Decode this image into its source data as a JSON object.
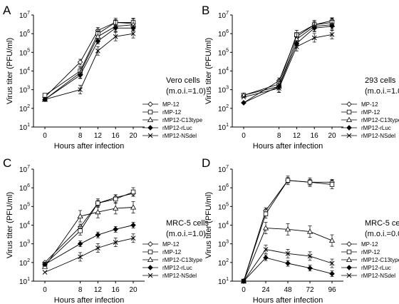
{
  "figure": {
    "ylabel": "Virus titer (PFU/ml)",
    "xlabel": "Hours after infection",
    "legend": [
      "MP-12",
      "rMP-12",
      "rMP12-C13type",
      "rMP12-rLuc",
      "rMP12-NSdel"
    ],
    "markers": [
      "diamond-open",
      "square-open",
      "triangle-open",
      "diamond-filled",
      "x"
    ]
  },
  "chart_data": [
    {
      "type": "line",
      "panel_label": "A",
      "annotation": [
        "Vero cells",
        "(m.o.i.=1.0)"
      ],
      "xlabel": "Hours after infection",
      "ylabel": "Virus titer (PFU/ml)",
      "y_scale": "log",
      "ylim": [
        10,
        10000000
      ],
      "x": [
        0,
        8,
        12,
        16,
        20
      ],
      "xticks": [
        0,
        8,
        12,
        16,
        20
      ],
      "series": [
        {
          "name": "MP-12",
          "values": [
            400,
            30000,
            1500000,
            4000000,
            3500000
          ]
        },
        {
          "name": "rMP-12",
          "values": [
            500,
            10000,
            1000000,
            4000000,
            4000000
          ]
        },
        {
          "name": "rMP12-C13type",
          "values": [
            300,
            8000,
            700000,
            2500000,
            3000000
          ]
        },
        {
          "name": "rMP12-rLuc",
          "values": [
            300,
            6000,
            400000,
            2000000,
            2000000
          ]
        },
        {
          "name": "rMP12-NSdel",
          "values": [
            300,
            1000,
            120000,
            700000,
            1000000
          ]
        }
      ]
    },
    {
      "type": "line",
      "panel_label": "B",
      "annotation": [
        "293 cells",
        "(m.o.i.=1.0)"
      ],
      "xlabel": "Hours after infection",
      "ylabel": "Virus titer (PFU/ml)",
      "y_scale": "log",
      "ylim": [
        10,
        10000000
      ],
      "x": [
        0,
        8,
        12,
        16,
        20
      ],
      "xticks": [
        0,
        8,
        12,
        16,
        20
      ],
      "series": [
        {
          "name": "MP-12",
          "values": [
            200,
            3000,
            700000,
            3000000,
            5000000
          ]
        },
        {
          "name": "rMP-12",
          "values": [
            500,
            2000,
            900000,
            3000000,
            4000000
          ]
        },
        {
          "name": "rMP12-C13type",
          "values": [
            500,
            1500,
            500000,
            2500000,
            3000000
          ]
        },
        {
          "name": "rMP12-rLuc",
          "values": [
            200,
            1500,
            300000,
            2000000,
            2500000
          ]
        },
        {
          "name": "rMP12-NSdel",
          "values": [
            400,
            1200,
            200000,
            600000,
            900000
          ]
        }
      ]
    },
    {
      "type": "line",
      "panel_label": "C",
      "annotation": [
        "MRC-5 cells",
        "(m.o.i.=1.0)"
      ],
      "xlabel": "Hours after infection",
      "ylabel": "Virus titer (PFU/ml)",
      "y_scale": "log",
      "ylim": [
        10,
        10000000
      ],
      "x": [
        0,
        8,
        12,
        16,
        20
      ],
      "xticks": [
        0,
        8,
        12,
        16,
        20
      ],
      "series": [
        {
          "name": "MP-12",
          "values": [
            100,
            8000,
            150000,
            300000,
            500000
          ]
        },
        {
          "name": "rMP-12",
          "values": [
            80,
            5000,
            150000,
            250000,
            600000
          ]
        },
        {
          "name": "rMP12-C13type",
          "values": [
            60,
            30000,
            50000,
            80000,
            90000
          ]
        },
        {
          "name": "rMP12-rLuc",
          "values": [
            80,
            1000,
            3000,
            6000,
            10000
          ]
        },
        {
          "name": "rMP12-NSdel",
          "values": [
            30,
            200,
            600,
            1200,
            2000
          ]
        }
      ]
    },
    {
      "type": "line",
      "panel_label": "D",
      "annotation": [
        "MRC-5 cells",
        "(m.o.i.=0.01)"
      ],
      "xlabel": "Hours after infection",
      "ylabel": "Virus titer (PFU/ml)",
      "y_scale": "log",
      "ylim": [
        10,
        10000000
      ],
      "x": [
        0,
        24,
        48,
        72,
        96
      ],
      "xticks": [
        0,
        24,
        48,
        72,
        96
      ],
      "series": [
        {
          "name": "MP-12",
          "values": [
            10,
            60000,
            2500000,
            2000000,
            2000000
          ]
        },
        {
          "name": "rMP-12",
          "values": [
            10,
            40000,
            2500000,
            2000000,
            1500000
          ]
        },
        {
          "name": "rMP12-C13type",
          "values": [
            10,
            7000,
            6000,
            4500,
            1500
          ]
        },
        {
          "name": "rMP12-rLuc",
          "values": [
            10,
            180,
            90,
            50,
            25
          ]
        },
        {
          "name": "rMP12-NSdel",
          "values": [
            10,
            500,
            300,
            220,
            90
          ]
        }
      ]
    }
  ]
}
